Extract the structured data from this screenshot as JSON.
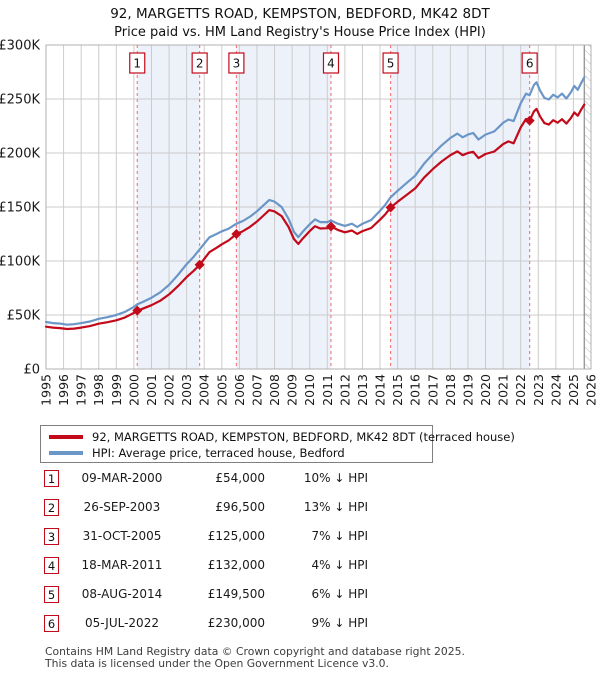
{
  "title": "92, MARGETTS ROAD, KEMPSTON, BEDFORD, MK42 8DT",
  "subtitle": "Price paid vs. HM Land Registry's House Price Index (HPI)",
  "legend": {
    "property_label": "92, MARGETTS ROAD, KEMPSTON, BEDFORD, MK42 8DT (terraced house)",
    "hpi_label": "HPI: Average price, terraced house, Bedford"
  },
  "colors": {
    "price_line": "#c20a1a",
    "hpi_line": "#6b96c8",
    "dashed_marker": "#f07878",
    "shaded_band": "#edf1fa",
    "grid": "#cccccc",
    "frame": "#b0b0b0",
    "hatch_line": "#bbbbbb",
    "hatch_edge": "#999999",
    "marker_box_border": "#c20a1a",
    "axis_text": "#1a1a1a"
  },
  "sales": [
    {
      "num": "1",
      "date": "09-MAR-2000",
      "price": "£54,000",
      "pct": "10% ↓ HPI",
      "year": 2000.19,
      "value": 54000
    },
    {
      "num": "2",
      "date": "26-SEP-2003",
      "price": "£96,500",
      "pct": "13% ↓ HPI",
      "year": 2003.74,
      "value": 96500
    },
    {
      "num": "3",
      "date": "31-OCT-2005",
      "price": "£125,000",
      "pct": "7% ↓ HPI",
      "year": 2005.83,
      "value": 125000
    },
    {
      "num": "4",
      "date": "18-MAR-2011",
      "price": "£132,000",
      "pct": "4% ↓ HPI",
      "year": 2011.21,
      "value": 132000
    },
    {
      "num": "5",
      "date": "08-AUG-2014",
      "price": "£149,500",
      "pct": "6% ↓ HPI",
      "year": 2014.6,
      "value": 149500
    },
    {
      "num": "6",
      "date": "05-JUL-2022",
      "price": "£230,000",
      "pct": "9% ↓ HPI",
      "year": 2022.51,
      "value": 230000
    }
  ],
  "footer": {
    "line1": "Contains HM Land Registry data © Crown copyright and database right 2025.",
    "line2": "This data is licensed under the Open Government Licence v3.0."
  },
  "chart_data": {
    "type": "line",
    "title": "Price paid vs. HPI",
    "xlim": [
      1995,
      2026
    ],
    "ylim": [
      0,
      300000
    ],
    "grid": true,
    "legend_position": "below",
    "x_ticks": [
      1995,
      1996,
      1997,
      1998,
      1999,
      2000,
      2001,
      2002,
      2003,
      2004,
      2005,
      2006,
      2007,
      2008,
      2009,
      2010,
      2011,
      2012,
      2013,
      2014,
      2015,
      2016,
      2017,
      2018,
      2019,
      2020,
      2021,
      2022,
      2023,
      2024,
      2025,
      2026
    ],
    "y_ticks": [
      {
        "value": 0,
        "label": "£0"
      },
      {
        "value": 50000,
        "label": "£50K"
      },
      {
        "value": 100000,
        "label": "£100K"
      },
      {
        "value": 150000,
        "label": "£150K"
      },
      {
        "value": 200000,
        "label": "£200K"
      },
      {
        "value": 250000,
        "label": "£250K"
      },
      {
        "value": 300000,
        "label": "£300K"
      }
    ],
    "shaded_bands": [
      [
        2000.19,
        2003.74
      ],
      [
        2005.83,
        2011.21
      ],
      [
        2014.6,
        2022.51
      ]
    ],
    "hatch_from": 2025.62,
    "series": [
      {
        "name": "HPI: Average price, terraced house, Bedford",
        "color": "#6b96c8",
        "x": [
          1995.0,
          1995.4,
          1995.8,
          1996.2,
          1996.6,
          1997.0,
          1997.5,
          1998.0,
          1998.5,
          1999.0,
          1999.5,
          2000.0,
          2000.19,
          2000.5,
          2001.0,
          2001.5,
          2002.0,
          2002.5,
          2003.0,
          2003.4,
          2003.74,
          2004.0,
          2004.3,
          2004.7,
          2005.0,
          2005.4,
          2005.83,
          2006.2,
          2006.6,
          2007.0,
          2007.4,
          2007.7,
          2008.0,
          2008.4,
          2008.8,
          2009.1,
          2009.35,
          2009.6,
          2010.0,
          2010.3,
          2010.6,
          2011.0,
          2011.21,
          2011.6,
          2012.0,
          2012.4,
          2012.7,
          2013.0,
          2013.5,
          2014.0,
          2014.3,
          2014.6,
          2015.0,
          2015.5,
          2016.0,
          2016.5,
          2017.0,
          2017.5,
          2018.0,
          2018.4,
          2018.7,
          2019.0,
          2019.3,
          2019.6,
          2020.0,
          2020.5,
          2021.0,
          2021.3,
          2021.6,
          2022.0,
          2022.3,
          2022.51,
          2022.75,
          2022.9,
          2023.1,
          2023.35,
          2023.6,
          2023.85,
          2024.1,
          2024.35,
          2024.6,
          2024.85,
          2025.05,
          2025.25,
          2025.45,
          2025.62
        ],
        "values": [
          43500,
          42500,
          42000,
          41000,
          41500,
          42500,
          44000,
          46500,
          48000,
          50000,
          53000,
          57500,
          59800,
          62000,
          66000,
          71000,
          78000,
          87000,
          97000,
          104000,
          110800,
          116000,
          122000,
          125000,
          127500,
          130000,
          134500,
          137000,
          141000,
          146000,
          152000,
          156500,
          155000,
          150000,
          139000,
          127000,
          122000,
          127000,
          134000,
          138500,
          136000,
          136000,
          137500,
          134500,
          132500,
          134500,
          131500,
          134500,
          138000,
          146500,
          152000,
          159000,
          165000,
          172000,
          179000,
          190000,
          199000,
          207000,
          214000,
          218000,
          214500,
          217000,
          218500,
          212500,
          217000,
          220000,
          228000,
          231000,
          229500,
          246000,
          255000,
          253500,
          263000,
          265500,
          258000,
          251000,
          249500,
          254000,
          251500,
          255000,
          250500,
          256000,
          262000,
          258500,
          265000,
          270000
        ]
      },
      {
        "name": "92, MARGETTS ROAD, KEMPSTON, BEDFORD, MK42 8DT (terraced house)",
        "color": "#c20a1a",
        "x": [
          1995.0,
          1995.4,
          1995.8,
          1996.2,
          1996.6,
          1997.0,
          1997.5,
          1998.0,
          1998.5,
          1999.0,
          1999.5,
          2000.0,
          2000.19,
          2000.5,
          2001.0,
          2001.5,
          2002.0,
          2002.5,
          2003.0,
          2003.4,
          2003.74,
          2004.0,
          2004.3,
          2004.7,
          2005.0,
          2005.4,
          2005.83,
          2006.2,
          2006.6,
          2007.0,
          2007.4,
          2007.7,
          2008.0,
          2008.4,
          2008.8,
          2009.1,
          2009.35,
          2009.6,
          2010.0,
          2010.3,
          2010.6,
          2011.0,
          2011.21,
          2011.6,
          2012.0,
          2012.4,
          2012.7,
          2013.0,
          2013.5,
          2014.0,
          2014.3,
          2014.6,
          2015.0,
          2015.5,
          2016.0,
          2016.5,
          2017.0,
          2017.5,
          2018.0,
          2018.4,
          2018.7,
          2019.0,
          2019.3,
          2019.6,
          2020.0,
          2020.5,
          2021.0,
          2021.3,
          2021.6,
          2022.0,
          2022.3,
          2022.51,
          2022.75,
          2022.9,
          2023.1,
          2023.35,
          2023.6,
          2023.85,
          2024.1,
          2024.35,
          2024.6,
          2024.85,
          2025.05,
          2025.25,
          2025.45,
          2025.62
        ],
        "values": [
          39200,
          38300,
          37900,
          37000,
          37400,
          38300,
          39700,
          41900,
          43300,
          45100,
          47800,
          51900,
          54000,
          55800,
          59100,
          63200,
          69100,
          76700,
          85100,
          90900,
          96500,
          101900,
          108200,
          112200,
          115500,
          119200,
          125000,
          127600,
          131600,
          136600,
          142600,
          147100,
          145900,
          141600,
          131500,
          120400,
          115800,
          120700,
          127700,
          132200,
          130100,
          130400,
          132000,
          128800,
          126600,
          128200,
          125100,
          127700,
          130600,
          138200,
          143200,
          149500,
          154800,
          161000,
          167200,
          177100,
          185100,
          192100,
          198100,
          201500,
          198000,
          200000,
          201100,
          195300,
          199100,
          201400,
          208200,
          210700,
          209000,
          223600,
          231500,
          229900,
          238500,
          240800,
          234000,
          227700,
          226300,
          230400,
          228100,
          231300,
          227200,
          232200,
          237600,
          234500,
          240400,
          244900
        ]
      }
    ]
  }
}
